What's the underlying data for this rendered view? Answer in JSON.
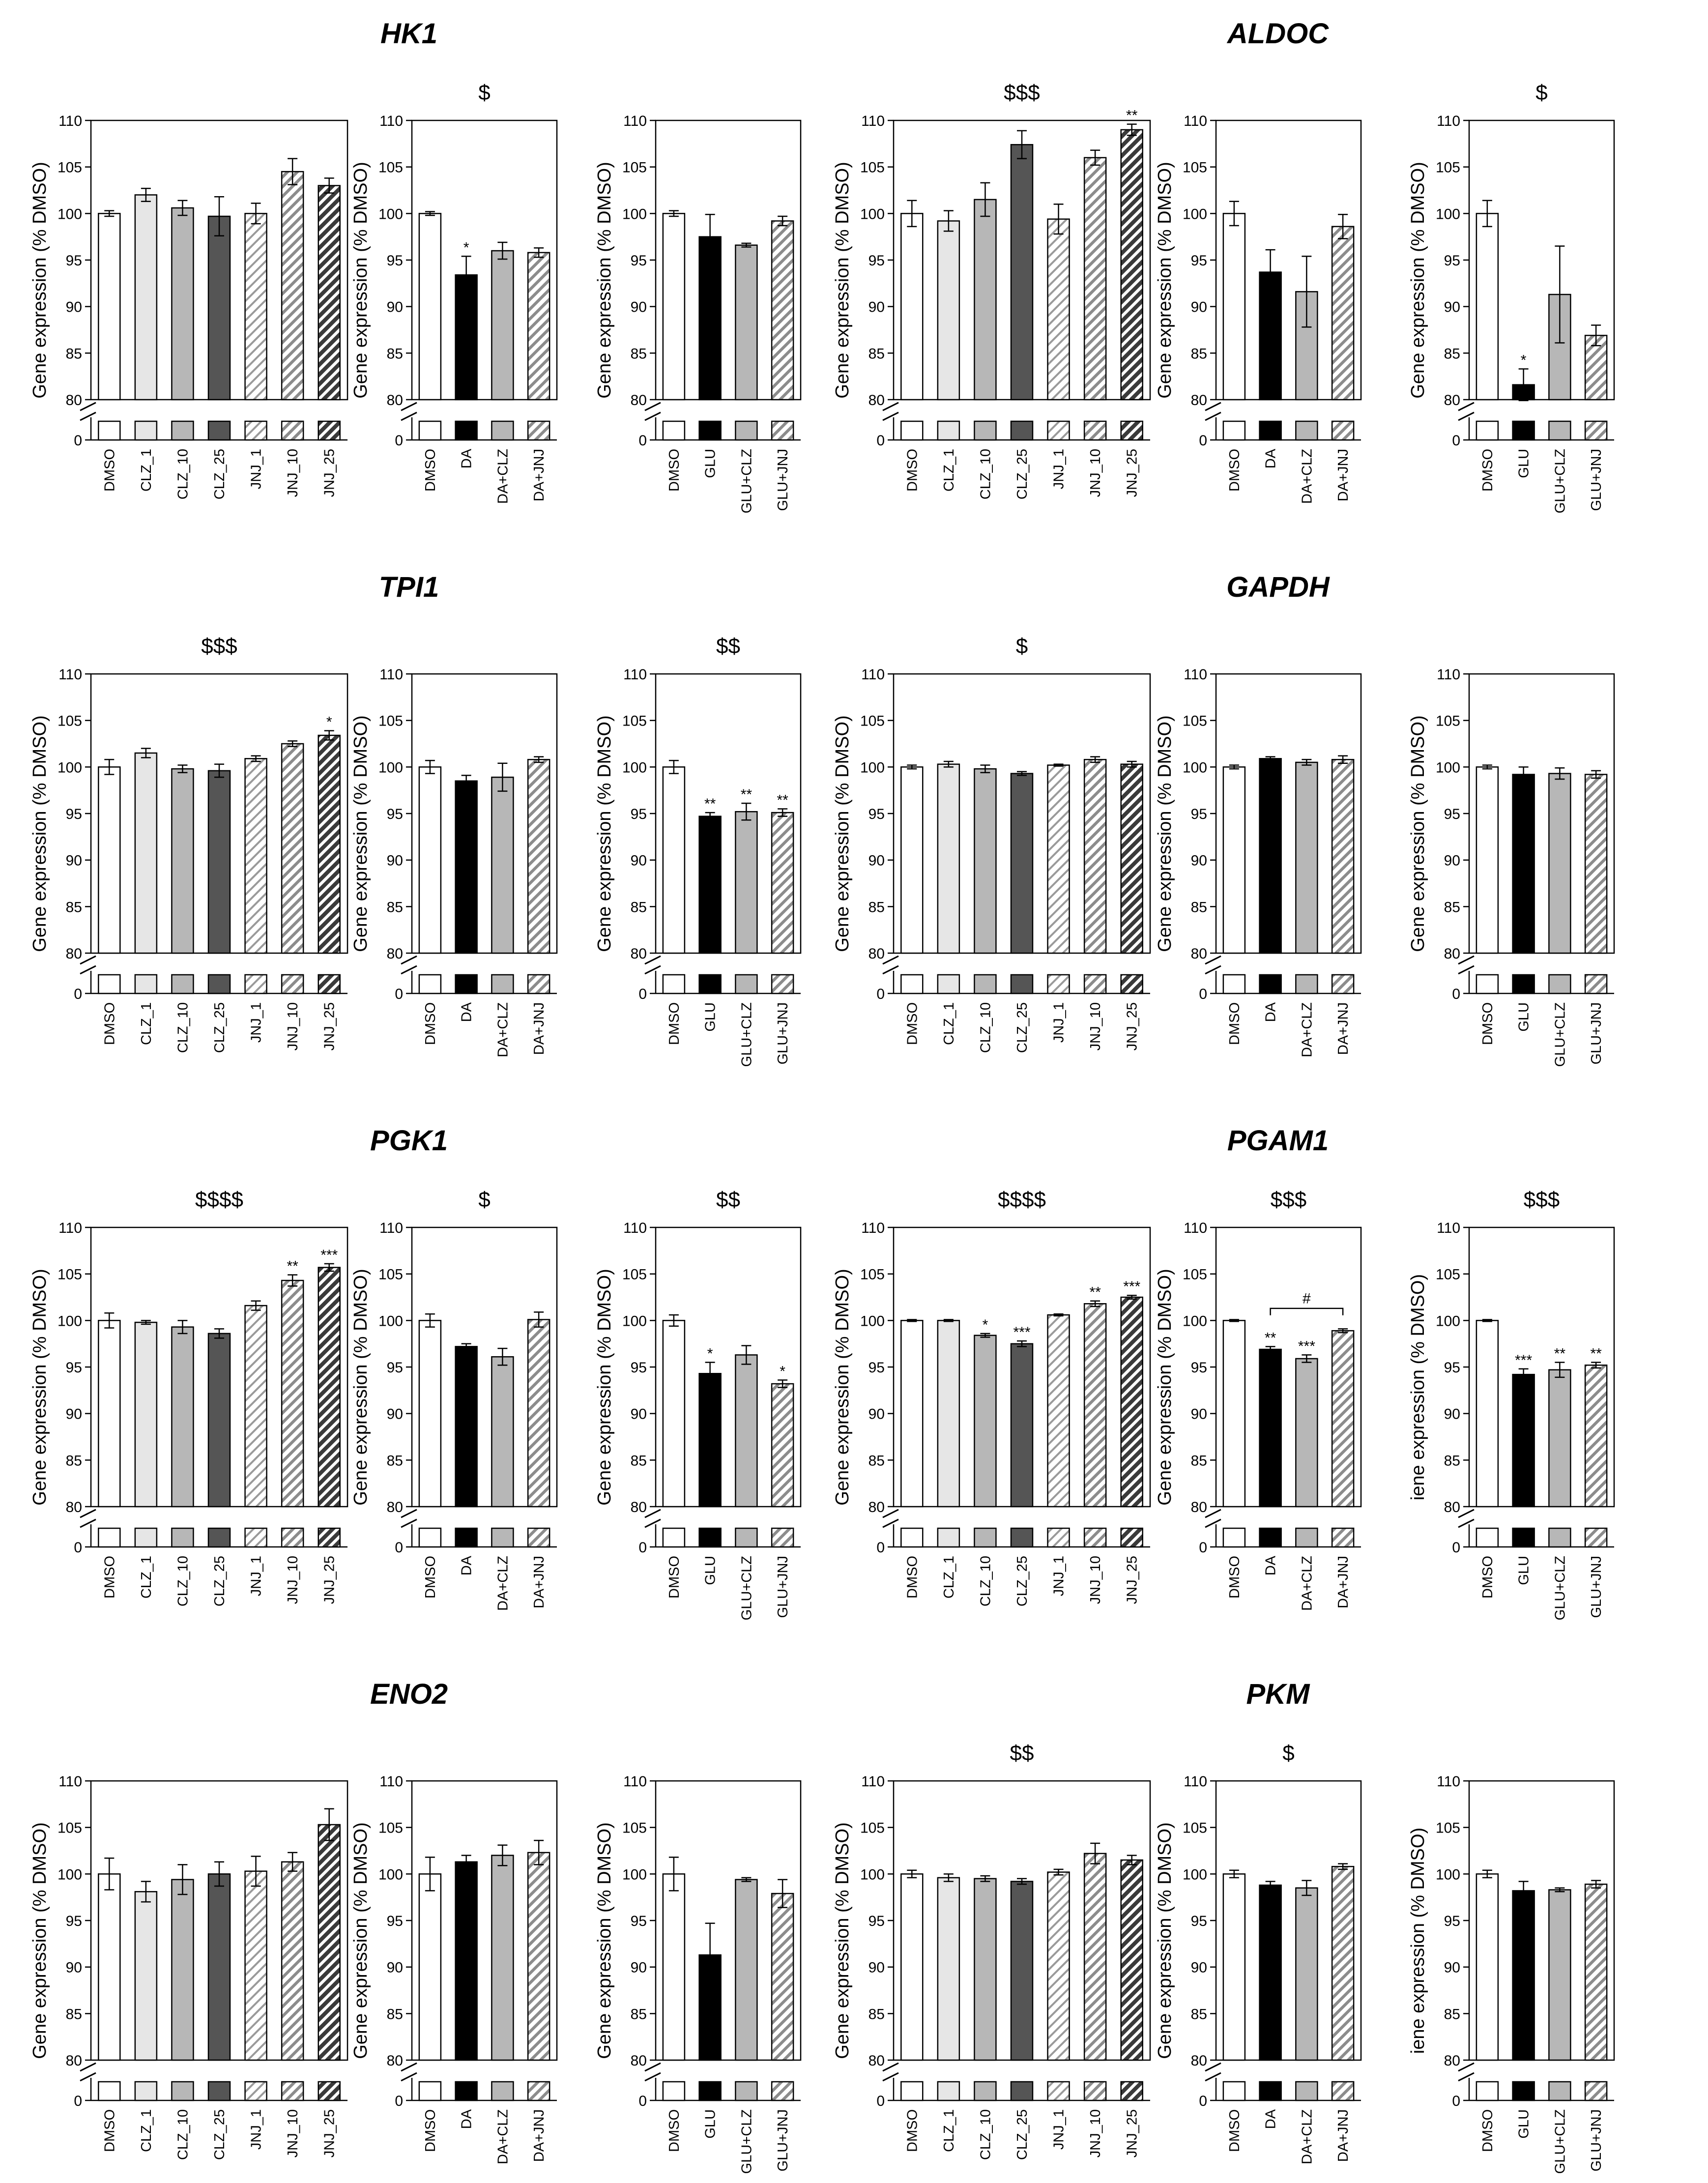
{
  "y_axis_label": "Gene expression (% DMSO)",
  "y_axis_label_clipped": "iene expression (% DMSO)",
  "y_ticks": [
    "80",
    "85",
    "90",
    "95",
    "100",
    "105",
    "110"
  ],
  "y_zero_label": "0",
  "colors": {
    "DMSO": "#ffffff",
    "CLZ_1": "#e6e6e6",
    "CLZ_10": "#b7b7b7",
    "CLZ_25": "#555555",
    "JNJ_1": "#cfcfcf",
    "JNJ_10": "#aaaaaa",
    "JNJ_25": "#555555",
    "DA": "#000000",
    "GLU": "#000000",
    "DA+CLZ": "#b7b7b7",
    "GLU+CLZ": "#b7b7b7",
    "DA+JNJ": "#aaaaaa",
    "GLU+JNJ": "#aaaaaa",
    "edge": "#000000"
  },
  "genes": [
    {
      "name": "HK1"
    },
    {
      "name": "ALDOC"
    },
    {
      "name": "TPI1"
    },
    {
      "name": "GAPDH"
    },
    {
      "name": "PGK1"
    },
    {
      "name": "PGAM1"
    },
    {
      "name": "ENO2"
    },
    {
      "name": "PKM"
    }
  ],
  "chart_data": [
    {
      "type": "bar",
      "gene": "HK1",
      "panel": "CLZ/JNJ",
      "ylabel": "Gene expression (% DMSO)",
      "ylim": [
        80,
        110
      ],
      "significance": "",
      "categories": [
        "DMSO",
        "CLZ_1",
        "CLZ_10",
        "CLZ_25",
        "JNJ_1",
        "JNJ_10",
        "JNJ_25"
      ],
      "values": [
        100,
        102,
        100.6,
        99.7,
        100,
        104.5,
        103
      ],
      "errors": [
        0.3,
        0.7,
        0.8,
        2.1,
        1.1,
        1.4,
        0.8
      ],
      "stars": [
        "",
        "",
        "",
        "",
        "",
        "",
        ""
      ]
    },
    {
      "type": "bar",
      "gene": "HK1",
      "panel": "DA",
      "ylabel": "Gene expression (% DMSO)",
      "ylim": [
        80,
        110
      ],
      "significance": "$",
      "categories": [
        "DMSO",
        "DA",
        "DA+CLZ",
        "DA+JNJ"
      ],
      "values": [
        100,
        93.4,
        96,
        95.8
      ],
      "errors": [
        0.2,
        2,
        0.9,
        0.5
      ],
      "stars": [
        "",
        "*",
        "",
        ""
      ]
    },
    {
      "type": "bar",
      "gene": "HK1",
      "panel": "GLU",
      "ylabel": "Gene expression (% DMSO)",
      "ylim": [
        80,
        110
      ],
      "significance": "",
      "categories": [
        "DMSO",
        "GLU",
        "GLU+CLZ",
        "GLU+JNJ"
      ],
      "values": [
        100,
        97.5,
        96.6,
        99.2
      ],
      "errors": [
        0.3,
        2.4,
        0.2,
        0.5
      ],
      "stars": [
        "",
        "",
        "",
        ""
      ]
    },
    {
      "type": "bar",
      "gene": "ALDOC",
      "panel": "CLZ/JNJ",
      "ylabel": "Gene expression (% DMSO)",
      "ylim": [
        80,
        110
      ],
      "significance": "$$$",
      "categories": [
        "DMSO",
        "CLZ_1",
        "CLZ_10",
        "CLZ_25",
        "JNJ_1",
        "JNJ_10",
        "JNJ_25"
      ],
      "values": [
        100,
        99.2,
        101.5,
        107.4,
        99.4,
        106,
        109
      ],
      "errors": [
        1.4,
        1.1,
        1.8,
        1.5,
        1.6,
        0.8,
        0.6
      ],
      "stars": [
        "",
        "",
        "",
        "",
        "",
        "",
        "**"
      ]
    },
    {
      "type": "bar",
      "gene": "ALDOC",
      "panel": "DA",
      "ylabel": "Gene expression (% DMSO)",
      "ylim": [
        80,
        110
      ],
      "significance": "",
      "categories": [
        "DMSO",
        "DA",
        "DA+CLZ",
        "DA+JNJ"
      ],
      "values": [
        100,
        93.7,
        91.6,
        98.6
      ],
      "errors": [
        1.3,
        2.4,
        3.8,
        1.3
      ],
      "stars": [
        "",
        "",
        "",
        ""
      ]
    },
    {
      "type": "bar",
      "gene": "ALDOC",
      "panel": "GLU",
      "ylabel": "Gene expression (% DMSO)",
      "ylim": [
        80,
        110
      ],
      "significance": "$",
      "categories": [
        "DMSO",
        "GLU",
        "GLU+CLZ",
        "GLU+JNJ"
      ],
      "values": [
        100,
        81.6,
        91.3,
        86.9
      ],
      "errors": [
        1.4,
        1.7,
        5.2,
        1.1
      ],
      "stars": [
        "",
        "*",
        "",
        ""
      ]
    },
    {
      "type": "bar",
      "gene": "TPI1",
      "panel": "CLZ/JNJ",
      "ylabel": "Gene expression (% DMSO)",
      "ylim": [
        80,
        110
      ],
      "significance": "$$$",
      "categories": [
        "DMSO",
        "CLZ_1",
        "CLZ_10",
        "CLZ_25",
        "JNJ_1",
        "JNJ_10",
        "JNJ_25"
      ],
      "values": [
        100,
        101.5,
        99.8,
        99.6,
        100.9,
        102.5,
        103.4
      ],
      "errors": [
        0.8,
        0.5,
        0.4,
        0.7,
        0.3,
        0.3,
        0.5
      ],
      "stars": [
        "",
        "",
        "",
        "",
        "",
        "",
        "*"
      ]
    },
    {
      "type": "bar",
      "gene": "TPI1",
      "panel": "DA",
      "ylabel": "Gene expression (% DMSO)",
      "ylim": [
        80,
        110
      ],
      "significance": "",
      "categories": [
        "DMSO",
        "DA",
        "DA+CLZ",
        "DA+JNJ"
      ],
      "values": [
        100,
        98.5,
        98.9,
        100.8
      ],
      "errors": [
        0.7,
        0.6,
        1.5,
        0.3
      ],
      "stars": [
        "",
        "",
        "",
        ""
      ]
    },
    {
      "type": "bar",
      "gene": "TPI1",
      "panel": "GLU",
      "ylabel": "Gene expression (% DMSO)",
      "ylim": [
        80,
        110
      ],
      "significance": "$$",
      "categories": [
        "DMSO",
        "GLU",
        "GLU+CLZ",
        "GLU+JNJ"
      ],
      "values": [
        100,
        94.7,
        95.2,
        95.1
      ],
      "errors": [
        0.7,
        0.4,
        0.9,
        0.4
      ],
      "stars": [
        "",
        "**",
        "**",
        "**"
      ]
    },
    {
      "type": "bar",
      "gene": "GAPDH",
      "panel": "CLZ/JNJ",
      "ylabel": "Gene expression (% DMSO)",
      "ylim": [
        80,
        110
      ],
      "significance": "$",
      "categories": [
        "DMSO",
        "CLZ_1",
        "CLZ_10",
        "CLZ_25",
        "JNJ_1",
        "JNJ_10",
        "JNJ_25"
      ],
      "values": [
        100,
        100.3,
        99.8,
        99.3,
        100.2,
        100.8,
        100.3
      ],
      "errors": [
        0.2,
        0.3,
        0.4,
        0.2,
        0.1,
        0.3,
        0.3
      ],
      "stars": [
        "",
        "",
        "",
        "",
        "",
        "",
        ""
      ]
    },
    {
      "type": "bar",
      "gene": "GAPDH",
      "panel": "DA",
      "ylabel": "Gene expression (% DMSO)",
      "ylim": [
        80,
        110
      ],
      "significance": "",
      "categories": [
        "DMSO",
        "DA",
        "DA+CLZ",
        "DA+JNJ"
      ],
      "values": [
        100,
        100.9,
        100.5,
        100.8
      ],
      "errors": [
        0.2,
        0.2,
        0.3,
        0.4
      ],
      "stars": [
        "",
        "",
        "",
        ""
      ]
    },
    {
      "type": "bar",
      "gene": "GAPDH",
      "panel": "GLU",
      "ylabel": "Gene expression (% DMSO)",
      "ylim": [
        80,
        110
      ],
      "significance": "",
      "categories": [
        "DMSO",
        "GLU",
        "GLU+CLZ",
        "GLU+JNJ"
      ],
      "values": [
        100,
        99.2,
        99.3,
        99.2
      ],
      "errors": [
        0.2,
        0.8,
        0.6,
        0.4
      ],
      "stars": [
        "",
        "",
        "",
        ""
      ]
    },
    {
      "type": "bar",
      "gene": "PGK1",
      "panel": "CLZ/JNJ",
      "ylabel": "Gene expression (% DMSO)",
      "ylim": [
        80,
        110
      ],
      "significance": "$$$$",
      "categories": [
        "DMSO",
        "CLZ_1",
        "CLZ_10",
        "CLZ_25",
        "JNJ_1",
        "JNJ_10",
        "JNJ_25"
      ],
      "values": [
        100,
        99.8,
        99.3,
        98.6,
        101.6,
        104.3,
        105.7
      ],
      "errors": [
        0.8,
        0.2,
        0.7,
        0.5,
        0.5,
        0.6,
        0.4
      ],
      "stars": [
        "",
        "",
        "",
        "",
        "",
        "**",
        "***"
      ]
    },
    {
      "type": "bar",
      "gene": "PGK1",
      "panel": "DA",
      "ylabel": "Gene expression (% DMSO)",
      "ylim": [
        80,
        110
      ],
      "significance": "$",
      "categories": [
        "DMSO",
        "DA",
        "DA+CLZ",
        "DA+JNJ"
      ],
      "values": [
        100,
        97.2,
        96.1,
        100.1
      ],
      "errors": [
        0.7,
        0.3,
        0.9,
        0.8
      ],
      "stars": [
        "",
        "",
        "",
        ""
      ]
    },
    {
      "type": "bar",
      "gene": "PGK1",
      "panel": "GLU",
      "ylabel": "Gene expression (% DMSO)",
      "ylim": [
        80,
        110
      ],
      "significance": "$$",
      "categories": [
        "DMSO",
        "GLU",
        "GLU+CLZ",
        "GLU+JNJ"
      ],
      "values": [
        100,
        94.3,
        96.3,
        93.2
      ],
      "errors": [
        0.6,
        1.2,
        1,
        0.4
      ],
      "stars": [
        "",
        "*",
        "",
        "*"
      ]
    },
    {
      "type": "bar",
      "gene": "PGAM1",
      "panel": "CLZ/JNJ",
      "ylabel": "Gene expression (% DMSO)",
      "ylim": [
        80,
        110
      ],
      "significance": "$$$$",
      "categories": [
        "DMSO",
        "CLZ_1",
        "CLZ_10",
        "CLZ_25",
        "JNJ_1",
        "JNJ_10",
        "JNJ_25"
      ],
      "values": [
        100,
        100,
        98.4,
        97.5,
        100.6,
        101.8,
        102.5
      ],
      "errors": [
        0.1,
        0.1,
        0.2,
        0.3,
        0.1,
        0.3,
        0.2
      ],
      "stars": [
        "",
        "",
        "*",
        "***",
        "",
        "**",
        "***"
      ]
    },
    {
      "type": "bar",
      "gene": "PGAM1",
      "panel": "DA",
      "ylabel": "Gene expression (% DMSO)",
      "ylim": [
        80,
        110
      ],
      "significance": "$$$",
      "categories": [
        "DMSO",
        "DA",
        "DA+CLZ",
        "DA+JNJ"
      ],
      "values": [
        100,
        96.9,
        95.9,
        98.9
      ],
      "errors": [
        0.1,
        0.3,
        0.4,
        0.2
      ],
      "stars": [
        "",
        "**",
        "***",
        ""
      ],
      "bracket": {
        "from": 1,
        "to": 3,
        "label": "#"
      }
    },
    {
      "type": "bar",
      "gene": "PGAM1",
      "panel": "GLU",
      "ylabel": "iene expression (% DMSO)",
      "ylim": [
        80,
        110
      ],
      "significance": "$$$",
      "categories": [
        "DMSO",
        "GLU",
        "GLU+CLZ",
        "GLU+JNJ"
      ],
      "values": [
        100,
        94.2,
        94.7,
        95.2
      ],
      "errors": [
        0.1,
        0.6,
        0.8,
        0.3
      ],
      "stars": [
        "",
        "***",
        "**",
        "**"
      ]
    },
    {
      "type": "bar",
      "gene": "ENO2",
      "panel": "CLZ/JNJ",
      "ylabel": "Gene expression (% DMSO)",
      "ylim": [
        80,
        110
      ],
      "significance": "",
      "categories": [
        "DMSO",
        "CLZ_1",
        "CLZ_10",
        "CLZ_25",
        "JNJ_1",
        "JNJ_10",
        "JNJ_25"
      ],
      "values": [
        100,
        98.1,
        99.4,
        100,
        100.3,
        101.3,
        105.3
      ],
      "errors": [
        1.7,
        1.1,
        1.6,
        1.3,
        1.6,
        1,
        1.7
      ],
      "stars": [
        "",
        "",
        "",
        "",
        "",
        "",
        ""
      ]
    },
    {
      "type": "bar",
      "gene": "ENO2",
      "panel": "DA",
      "ylabel": "Gene expression (% DMSO)",
      "ylim": [
        80,
        110
      ],
      "significance": "",
      "categories": [
        "DMSO",
        "DA",
        "DA+CLZ",
        "DA+JNJ"
      ],
      "values": [
        100,
        101.3,
        102,
        102.3
      ],
      "errors": [
        1.8,
        0.7,
        1.1,
        1.3
      ],
      "stars": [
        "",
        "",
        "",
        ""
      ]
    },
    {
      "type": "bar",
      "gene": "ENO2",
      "panel": "GLU",
      "ylabel": "Gene expression (% DMSO)",
      "ylim": [
        80,
        110
      ],
      "significance": "",
      "categories": [
        "DMSO",
        "GLU",
        "GLU+CLZ",
        "GLU+JNJ"
      ],
      "values": [
        100,
        91.3,
        99.4,
        97.9
      ],
      "errors": [
        1.8,
        3.4,
        0.2,
        1.5
      ],
      "stars": [
        "",
        "",
        "",
        ""
      ]
    },
    {
      "type": "bar",
      "gene": "PKM",
      "panel": "CLZ/JNJ",
      "ylabel": "Gene expression (% DMSO)",
      "ylim": [
        80,
        110
      ],
      "significance": "$$",
      "categories": [
        "DMSO",
        "CLZ_1",
        "CLZ_10",
        "CLZ_25",
        "JNJ_1",
        "JNJ_10",
        "JNJ_25"
      ],
      "values": [
        100,
        99.6,
        99.5,
        99.2,
        100.2,
        102.2,
        101.5
      ],
      "errors": [
        0.4,
        0.4,
        0.3,
        0.3,
        0.3,
        1.1,
        0.5
      ],
      "stars": [
        "",
        "",
        "",
        "",
        "",
        "",
        ""
      ]
    },
    {
      "type": "bar",
      "gene": "PKM",
      "panel": "DA",
      "ylabel": "Gene expression (% DMSO)",
      "ylim": [
        80,
        110
      ],
      "significance": "$",
      "categories": [
        "DMSO",
        "DA",
        "DA+CLZ",
        "DA+JNJ"
      ],
      "values": [
        100,
        98.8,
        98.5,
        100.8
      ],
      "errors": [
        0.4,
        0.4,
        0.8,
        0.3
      ],
      "stars": [
        "",
        "",
        "",
        ""
      ]
    },
    {
      "type": "bar",
      "gene": "PKM",
      "panel": "GLU",
      "ylabel": "iene expression (% DMSO)",
      "ylim": [
        80,
        110
      ],
      "significance": "",
      "categories": [
        "DMSO",
        "GLU",
        "GLU+CLZ",
        "GLU+JNJ"
      ],
      "values": [
        100,
        98.2,
        98.3,
        98.9
      ],
      "errors": [
        0.4,
        1,
        0.2,
        0.4
      ],
      "stars": [
        "",
        "",
        "",
        ""
      ]
    }
  ]
}
